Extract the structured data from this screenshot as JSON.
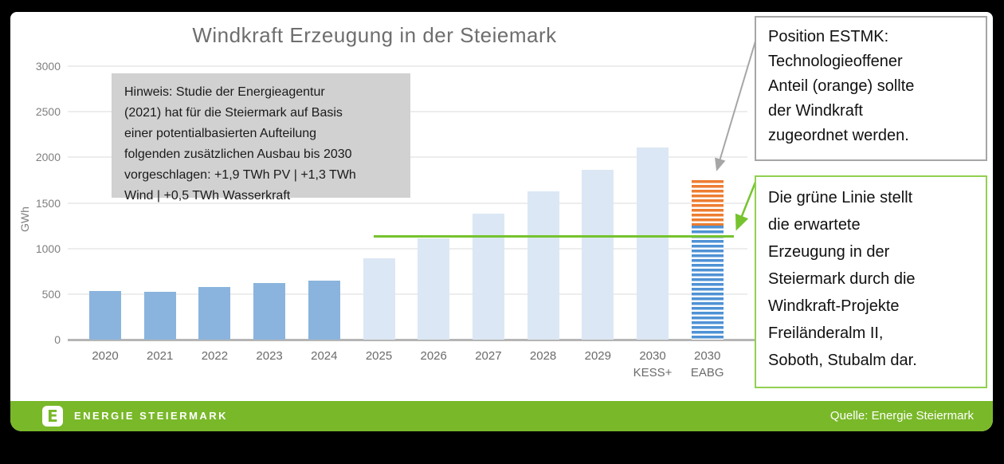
{
  "title": "Windkraft Erzeugung in der Steiemark",
  "note_box": "Hinweis: Studie der Energieagentur\n(2021) hat für die Steiermark auf Basis\neiner potentialbasierten Aufteilung\nfolgenden zusätzlichen Ausbau bis 2030\nvorgeschlagen: +1,9 TWh PV | +1,3 TWh\nWind | +0,5 TWh Wasserkraft",
  "annotations": {
    "estmk": "Position ESTMK:\nTechnologieoffener\nAnteil (orange) sollte\nder Windkraft\nzugeordnet werden.",
    "green_line": "Die grüne Linie stellt\ndie erwartete\nErzeugung in der\nSteiermark durch die\nWindkraft-Projekte\nFreiländeralm II,\nSoboth, Stubalm dar."
  },
  "footer": {
    "logo_letter": "E",
    "brand": "ENERGIE STEIERMARK",
    "source": "Quelle: Energie Steiermark"
  },
  "chart_data": {
    "type": "bar",
    "title": "Windkraft Erzeugung in der Steiemark",
    "xlabel": "",
    "ylabel": "GWh",
    "ylim": [
      0,
      3000
    ],
    "yticks": [
      0,
      500,
      1000,
      1500,
      2000,
      2500,
      3000
    ],
    "grid": true,
    "legend": false,
    "bars": [
      {
        "label": "2020",
        "value": 535,
        "style": "solid"
      },
      {
        "label": "2021",
        "value": 525,
        "style": "solid"
      },
      {
        "label": "2022",
        "value": 580,
        "style": "solid"
      },
      {
        "label": "2023",
        "value": 620,
        "style": "solid"
      },
      {
        "label": "2024",
        "value": 650,
        "style": "solid"
      },
      {
        "label": "2025",
        "value": 890,
        "style": "projected"
      },
      {
        "label": "2026",
        "value": 1110,
        "style": "projected"
      },
      {
        "label": "2027",
        "value": 1380,
        "style": "projected"
      },
      {
        "label": "2028",
        "value": 1625,
        "style": "projected"
      },
      {
        "label": "2029",
        "value": 1860,
        "style": "projected"
      },
      {
        "label": "2030",
        "sublabel": "KESS+",
        "value": 2105,
        "style": "projected"
      },
      {
        "label": "2030",
        "sublabel": "EABG",
        "style": "striped-stack",
        "segments": [
          {
            "pattern": "blue",
            "value": 1250
          },
          {
            "pattern": "orange",
            "value": 500
          }
        ]
      }
    ],
    "reference_line": {
      "value": 1130
    }
  },
  "colors": {
    "bar_solid": "#8ab4dd",
    "bar_projected": "#dbe7f4",
    "stripe_blue": "#4f92d5",
    "stripe_orange": "#ed7d31",
    "reference_line_green": "#76c32f",
    "annotation_green_border": "#92d050",
    "annotation_gray_border": "#a6a6a6",
    "gray_arrow": "#a6a6a6",
    "footer_green": "#79b829",
    "note_background": "#d1d1d1",
    "title_gray": "#6e6e6e",
    "axis_text": "#7f7f7f"
  }
}
